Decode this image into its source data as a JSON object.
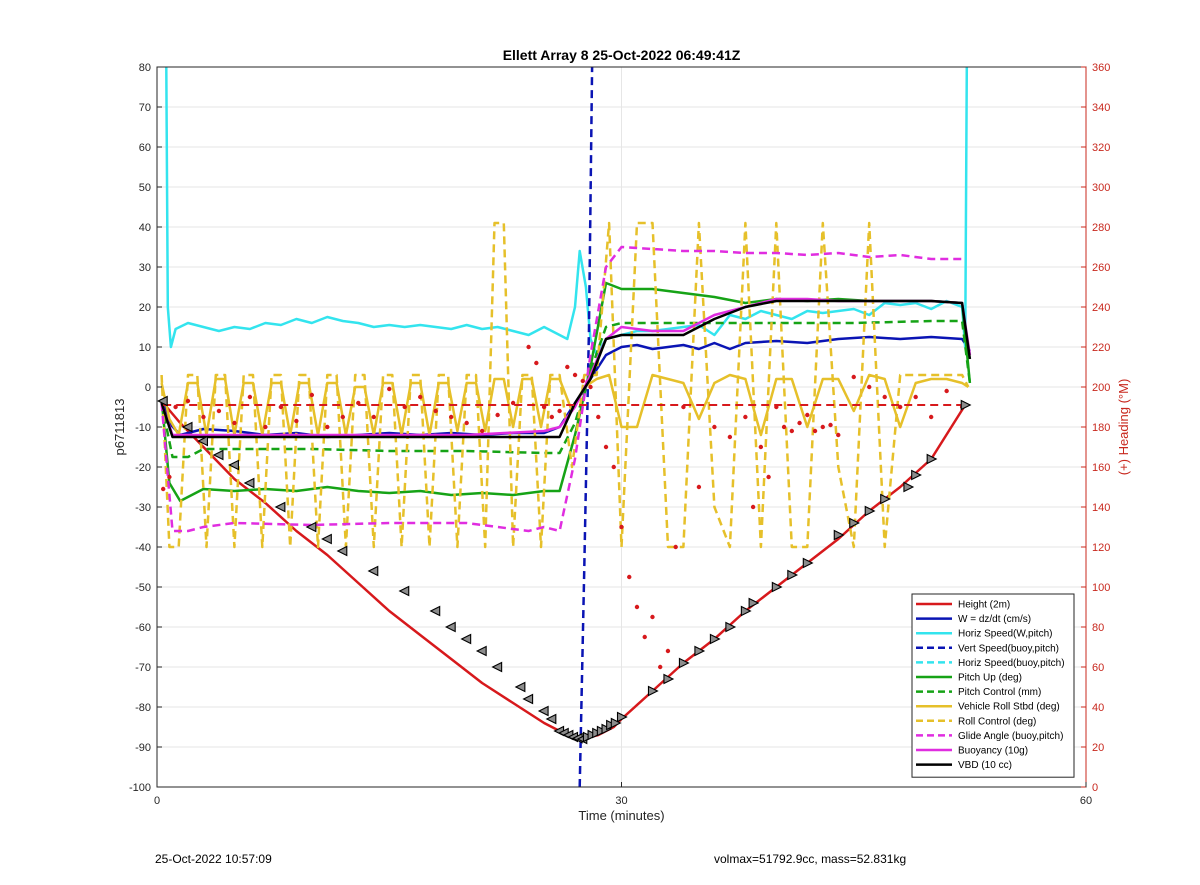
{
  "chart_data": {
    "type": "line",
    "title": "Ellett Array 8 25-Oct-2022 06:49:41Z",
    "xlabel": "Time (minutes)",
    "ylabel": "p6711813",
    "y2label": "(+) Heading (°M)",
    "xlim": [
      0,
      60
    ],
    "ylim": [
      -100,
      80
    ],
    "y2lim": [
      0,
      360
    ],
    "xticks": [
      0,
      30,
      60
    ],
    "yticks": [
      -100,
      -90,
      -80,
      -70,
      -60,
      -50,
      -40,
      -30,
      -20,
      -10,
      0,
      10,
      20,
      30,
      40,
      50,
      60,
      70,
      80
    ],
    "y2ticks": [
      0,
      20,
      40,
      60,
      80,
      100,
      120,
      140,
      160,
      180,
      200,
      220,
      240,
      260,
      280,
      300,
      320,
      340,
      360
    ],
    "grid": true,
    "legend_position": "lower-right",
    "colors": {
      "red": "#d7191c",
      "blue": "#0a14b4",
      "cyan": "#33e4ee",
      "green": "#16a316",
      "yellow": "#e6c02a",
      "magenta": "#e02de0",
      "black": "#000000",
      "right_axis": "#c8281e"
    },
    "series": [
      {
        "name": "Height (2m)",
        "color": "#d7191c",
        "style": "solid",
        "x": [
          0.3,
          1.5,
          3,
          5,
          7,
          9,
          11,
          13,
          15,
          17,
          19,
          21,
          23,
          25,
          26,
          26.5,
          27,
          27.5,
          28,
          28.5,
          29,
          29.5,
          30,
          32,
          34,
          36,
          38,
          40,
          42,
          44,
          46,
          48,
          50,
          52.2
        ],
        "y": [
          -3.5,
          -9,
          -15,
          -23,
          -29,
          -36,
          -42,
          -49,
          -56,
          -62,
          -68,
          -74,
          -79,
          -84,
          -86,
          -87,
          -87.5,
          -87.8,
          -87.5,
          -87,
          -86,
          -85,
          -83,
          -76,
          -69,
          -63,
          -56,
          -50,
          -44,
          -38,
          -31,
          -25,
          -18,
          -4.5
        ]
      },
      {
        "name": "W = dz/dt (cm/s)",
        "color": "#0a14b4",
        "style": "solid",
        "x": [
          0.3,
          0.8,
          1.5,
          3,
          5,
          7,
          9,
          11,
          13,
          15,
          17,
          19,
          21,
          23,
          25,
          26,
          27,
          28,
          29,
          30,
          31,
          32,
          33,
          34,
          35,
          36,
          37,
          38,
          40,
          42,
          44,
          46,
          48,
          50,
          52,
          52.5
        ],
        "y": [
          -3,
          -9,
          -12,
          -10.5,
          -11,
          -12,
          -11.5,
          -12.5,
          -12,
          -11.5,
          -12,
          -11.5,
          -12,
          -11.5,
          -11.5,
          -10,
          -4,
          2,
          8,
          10,
          10.5,
          9.5,
          10,
          10.5,
          9.5,
          11,
          9.5,
          11,
          11.5,
          11,
          12,
          12.5,
          12,
          12.5,
          12,
          9
        ]
      },
      {
        "name": "Horiz Speed(W,pitch)",
        "color": "#33e4ee",
        "style": "solid",
        "x": [
          0.6,
          0.7,
          0.9,
          1.2,
          2,
          3,
          4,
          5,
          6,
          7,
          8,
          9,
          10,
          11,
          12,
          13,
          14,
          15,
          16,
          17,
          18,
          19,
          20,
          21,
          22,
          23,
          24,
          25,
          26,
          26.5,
          27,
          27.3,
          27.7,
          28,
          28.4,
          29,
          30,
          31,
          32,
          33,
          34,
          35,
          36,
          37,
          38,
          39,
          40,
          41,
          42,
          43,
          44,
          45,
          46,
          47,
          48,
          49,
          50,
          51,
          52,
          52.2,
          52.3
        ],
        "y": [
          80,
          20,
          10,
          14.5,
          16,
          15,
          14,
          15,
          14.5,
          16,
          15.5,
          17,
          16,
          17.5,
          16.5,
          16,
          15,
          15.5,
          15,
          15.5,
          15,
          14.5,
          15.5,
          14.5,
          15,
          14,
          13,
          15,
          13,
          12,
          20,
          34,
          25,
          12,
          8,
          12,
          13,
          14,
          14,
          14.5,
          15,
          15.5,
          13,
          18,
          17,
          19,
          18,
          17,
          19,
          18.5,
          19,
          19.5,
          18,
          21,
          20.5,
          21,
          19.5,
          21.5,
          20,
          10,
          80
        ]
      },
      {
        "name": "Vert Speed(buoy,pitch)",
        "color": "#0a14b4",
        "style": "dashed",
        "x": [
          27.3,
          27.6,
          27.9,
          28.1
        ],
        "y": [
          -100,
          -45,
          15,
          80
        ]
      },
      {
        "name": "Horiz Speed(buoy,pitch)",
        "color": "#33e4ee",
        "style": "dashed",
        "x": [],
        "y": []
      },
      {
        "name": "Pitch Up (deg)",
        "color": "#16a316",
        "style": "solid",
        "x": [
          0.3,
          0.8,
          1.5,
          3,
          5,
          7,
          9,
          11,
          13,
          15,
          17,
          19,
          21,
          23,
          25,
          26,
          27,
          28,
          29,
          30,
          32,
          34,
          36,
          38,
          40,
          42,
          44,
          46,
          48,
          50,
          52,
          52.5
        ],
        "y": [
          -3,
          -24,
          -28.5,
          -25.5,
          -26,
          -25.5,
          -26,
          -25,
          -26,
          -26.5,
          -26,
          -27,
          -26.5,
          -27,
          -26,
          -26,
          -12,
          5,
          26,
          24.5,
          24.5,
          23.5,
          22.5,
          21,
          22,
          21.5,
          22,
          21.5,
          21.5,
          21.5,
          21,
          1
        ]
      },
      {
        "name": "Pitch Control (mm)",
        "color": "#16a316",
        "style": "dashed",
        "x": [
          0.3,
          1,
          2,
          3,
          5,
          10,
          15,
          20,
          25,
          26,
          27,
          28,
          29,
          30,
          35,
          40,
          45,
          50,
          52,
          52.5
        ],
        "y": [
          -4,
          -17.5,
          -17.5,
          -15.5,
          -15.5,
          -15.5,
          -16,
          -16,
          -16.5,
          -16.5,
          -9,
          4,
          15,
          16,
          16,
          16,
          16,
          16.5,
          16.5,
          1
        ]
      },
      {
        "name": "Vehicle Roll Stbd (deg)",
        "color": "#e6c02a",
        "style": "solid",
        "x": [
          0.3,
          0.8,
          1.4,
          2.0,
          2.6,
          3.2,
          3.8,
          4.4,
          5.0,
          5.6,
          6.2,
          6.8,
          7.4,
          8.0,
          8.6,
          9.2,
          9.8,
          10.4,
          11.0,
          11.6,
          12.2,
          12.8,
          13.4,
          14.0,
          14.6,
          15.2,
          15.8,
          16.4,
          17.0,
          17.6,
          18.2,
          18.8,
          19.4,
          20.0,
          20.6,
          21.2,
          21.8,
          22.4,
          23.0,
          23.6,
          24.2,
          24.8,
          25.4,
          26.0,
          26.8,
          27.6,
          28.4,
          29.2,
          30.0,
          31.0,
          32.0,
          33.0,
          34.0,
          35.0,
          36.0,
          37.0,
          38.0,
          39.0,
          40.0,
          41.0,
          42.0,
          43.0,
          44.0,
          45.0,
          46.0,
          47.0,
          48.0,
          49.0,
          50.0,
          51.0,
          52.0,
          52.4
        ],
        "y": [
          1,
          -8,
          -12,
          1,
          1,
          -12,
          2,
          2,
          -12,
          1,
          1,
          -12,
          1,
          1,
          -12,
          1,
          1,
          -12,
          1,
          1,
          -12,
          0,
          0,
          -12,
          1,
          1,
          -12,
          1,
          1,
          -12,
          1,
          1,
          -11,
          1,
          1,
          -11,
          2,
          2,
          -10,
          2,
          2,
          -10,
          2,
          2,
          -6,
          0,
          2,
          3,
          -10,
          -10,
          3,
          2,
          1,
          -8,
          1,
          3,
          2,
          -12,
          2,
          2,
          -10,
          2,
          2,
          -6,
          3,
          2,
          -10,
          1,
          2,
          2,
          1,
          0
        ]
      },
      {
        "name": "Roll Control (deg)",
        "color": "#e6c02a",
        "style": "dashed",
        "x": [
          0.3,
          0.8,
          1.4,
          2.0,
          2.6,
          3.2,
          3.8,
          4.4,
          5.0,
          5.6,
          6.2,
          6.8,
          7.4,
          8.0,
          8.6,
          9.2,
          9.8,
          10.4,
          11.0,
          11.6,
          12.2,
          12.8,
          13.4,
          14.0,
          14.6,
          15.2,
          15.8,
          16.4,
          17.0,
          17.6,
          18.2,
          18.8,
          19.4,
          20.0,
          20.6,
          21.2,
          21.8,
          22.4,
          23.0,
          23.6,
          24.2,
          24.8,
          25.4,
          26.0,
          26.8,
          27.6,
          28.4,
          29.2,
          30.0,
          31.0,
          32.0,
          33.0,
          34.0,
          35.0,
          36.0,
          37.0,
          38.0,
          39.0,
          40.0,
          41.0,
          42.0,
          43.0,
          44.0,
          45.0,
          46.0,
          47.0,
          48.0,
          49.0,
          50.0,
          51.0,
          52.0,
          52.4
        ],
        "y": [
          3,
          -40,
          -40,
          3,
          3,
          -40,
          3,
          3,
          -40,
          3,
          3,
          -40,
          3,
          3,
          -40,
          3,
          3,
          -40,
          3,
          3,
          -40,
          3,
          3,
          -40,
          3,
          3,
          -40,
          3,
          3,
          -40,
          3,
          3,
          -40,
          3,
          3,
          -40,
          41,
          41,
          -40,
          3,
          3,
          -40,
          3,
          3,
          -20,
          3,
          3,
          41,
          -40,
          41,
          41,
          -40,
          -40,
          41,
          -30,
          -40,
          41,
          -40,
          41,
          -40,
          -40,
          41,
          -20,
          -40,
          41,
          -40,
          3,
          3,
          3,
          3,
          3,
          0
        ]
      },
      {
        "name": "Glide Angle (buoy,pitch)",
        "color": "#e02de0",
        "style": "dashed",
        "x": [
          0.3,
          1,
          2,
          3,
          5,
          10,
          15,
          20,
          24,
          25,
          26,
          27,
          28,
          29,
          30,
          32,
          34,
          36,
          38,
          40,
          42,
          44,
          46,
          48,
          50,
          52
        ],
        "y": [
          -4,
          -36,
          -36,
          -35,
          -34,
          -34.5,
          -34,
          -34,
          -36,
          -35,
          -36,
          -18,
          8,
          30,
          35,
          34.5,
          34,
          34,
          33.5,
          33.5,
          33,
          33.5,
          32.5,
          33,
          32,
          32
        ]
      },
      {
        "name": "Buoyancy (10g)",
        "color": "#e02de0",
        "style": "solid",
        "x": [
          0.3,
          1,
          2,
          5,
          10,
          15,
          20,
          25,
          26,
          27,
          28,
          29,
          30,
          32,
          34,
          36,
          38,
          40,
          42,
          44,
          46,
          48,
          50,
          52,
          52.5
        ],
        "y": [
          -4,
          -12,
          -12,
          -12,
          -12,
          -12,
          -12,
          -11,
          -10,
          -5,
          3,
          12,
          15,
          14,
          14,
          18,
          20,
          22,
          22,
          21.5,
          21.5,
          21.5,
          21.5,
          21,
          8
        ]
      },
      {
        "name": "VBD (10 cc)",
        "color": "#000000",
        "style": "solid",
        "x": [
          0.3,
          1,
          2,
          5,
          10,
          15,
          20,
          25,
          26,
          27,
          28,
          29,
          30,
          32,
          34,
          36,
          38,
          40,
          42,
          44,
          46,
          48,
          50,
          52,
          52.5
        ],
        "y": [
          -4,
          -12.5,
          -12.5,
          -12.5,
          -12.5,
          -12.5,
          -12.5,
          -12.5,
          -12.5,
          -4,
          2,
          12,
          13,
          13,
          13,
          17,
          20,
          21.5,
          21.5,
          21.5,
          21.5,
          21.5,
          21.5,
          21,
          7
        ]
      }
    ],
    "heading_reference": {
      "color": "#d7191c",
      "style": "dashed",
      "y2": 191
    },
    "heading_points": {
      "color": "#d7191c",
      "x": [
        0.4,
        0.8,
        1.2,
        2,
        3,
        4,
        5,
        6,
        7,
        8,
        9,
        10,
        11,
        12,
        13,
        14,
        15,
        16,
        17,
        18,
        19,
        20,
        21,
        22,
        23,
        24,
        24.5,
        25,
        25.5,
        26,
        26.5,
        27,
        27.5,
        28,
        28.5,
        29,
        29.5,
        30,
        30.5,
        31,
        31.5,
        32,
        32.5,
        33,
        33.5,
        34,
        35,
        36,
        37,
        38,
        38.5,
        39,
        39.5,
        40,
        40.5,
        41,
        41.5,
        42,
        42.5,
        43,
        43.5,
        44,
        45,
        46,
        47,
        48,
        49,
        50,
        51,
        52
      ],
      "y2": [
        149,
        155,
        190,
        193,
        185,
        188,
        182,
        195,
        180,
        190,
        183,
        196,
        180,
        185,
        192,
        185,
        199,
        190,
        195,
        188,
        185,
        182,
        178,
        186,
        192,
        220,
        212,
        190,
        185,
        188,
        210,
        206,
        203,
        200,
        185,
        170,
        160,
        130,
        105,
        90,
        75,
        85,
        60,
        68,
        120,
        190,
        150,
        180,
        175,
        185,
        140,
        170,
        155,
        190,
        180,
        178,
        182,
        186,
        178,
        180,
        181,
        176,
        205,
        200,
        195,
        190,
        195,
        185,
        198,
        190
      ]
    },
    "marker_points": {
      "x": [
        0.4,
        2,
        3,
        4,
        5,
        6,
        8,
        10,
        11,
        12,
        14,
        16,
        18,
        19,
        20,
        21,
        22,
        23.5,
        24,
        25,
        25.5,
        26,
        26.3,
        26.6,
        26.9,
        27.2,
        27.5,
        27.8,
        28.1,
        28.4,
        28.7,
        29,
        29.3,
        29.6,
        30,
        32,
        33,
        34,
        35,
        36,
        37,
        38,
        38.5,
        40,
        41,
        42,
        44,
        45,
        46,
        47,
        48.5,
        49,
        50,
        52.2
      ],
      "y": [
        -3.5,
        -10,
        -13.5,
        -17,
        -19.5,
        -24,
        -30,
        -35,
        -38,
        -41,
        -46,
        -51,
        -56,
        -60,
        -63,
        -66,
        -70,
        -75,
        -78,
        -81,
        -83,
        -86,
        -86.5,
        -87,
        -87.5,
        -87.8,
        -88,
        -87.5,
        -87,
        -86.5,
        -86,
        -85.5,
        -84.5,
        -84,
        -82.5,
        -76,
        -73,
        -69,
        -66,
        -63,
        -60,
        -56,
        -54,
        -50,
        -47,
        -44,
        -37,
        -34,
        -31,
        -28,
        -25,
        -22,
        -18,
        -4.5
      ]
    },
    "legend": [
      {
        "label": "Height (2m)",
        "color": "#d7191c",
        "style": "solid"
      },
      {
        "label": "W = dz/dt (cm/s)",
        "color": "#0a14b4",
        "style": "solid"
      },
      {
        "label": "Horiz Speed(W,pitch)",
        "color": "#33e4ee",
        "style": "solid"
      },
      {
        "label": "Vert Speed(buoy,pitch)",
        "color": "#0a14b4",
        "style": "dashed"
      },
      {
        "label": "Horiz Speed(buoy,pitch)",
        "color": "#33e4ee",
        "style": "dashed"
      },
      {
        "label": "Pitch Up (deg)",
        "color": "#16a316",
        "style": "solid"
      },
      {
        "label": "Pitch Control (mm)",
        "color": "#16a316",
        "style": "dashed"
      },
      {
        "label": "Vehicle Roll Stbd (deg)",
        "color": "#e6c02a",
        "style": "solid"
      },
      {
        "label": "Roll Control (deg)",
        "color": "#e6c02a",
        "style": "dashed"
      },
      {
        "label": "Glide Angle (buoy,pitch)",
        "color": "#e02de0",
        "style": "dashed"
      },
      {
        "label": "Buoyancy (10g)",
        "color": "#e02de0",
        "style": "solid"
      },
      {
        "label": "VBD (10 cc)",
        "color": "#000000",
        "style": "solid"
      }
    ]
  },
  "footer": {
    "left": "25-Oct-2022 10:57:09",
    "right": "volmax=51792.9cc, mass=52.831kg"
  }
}
